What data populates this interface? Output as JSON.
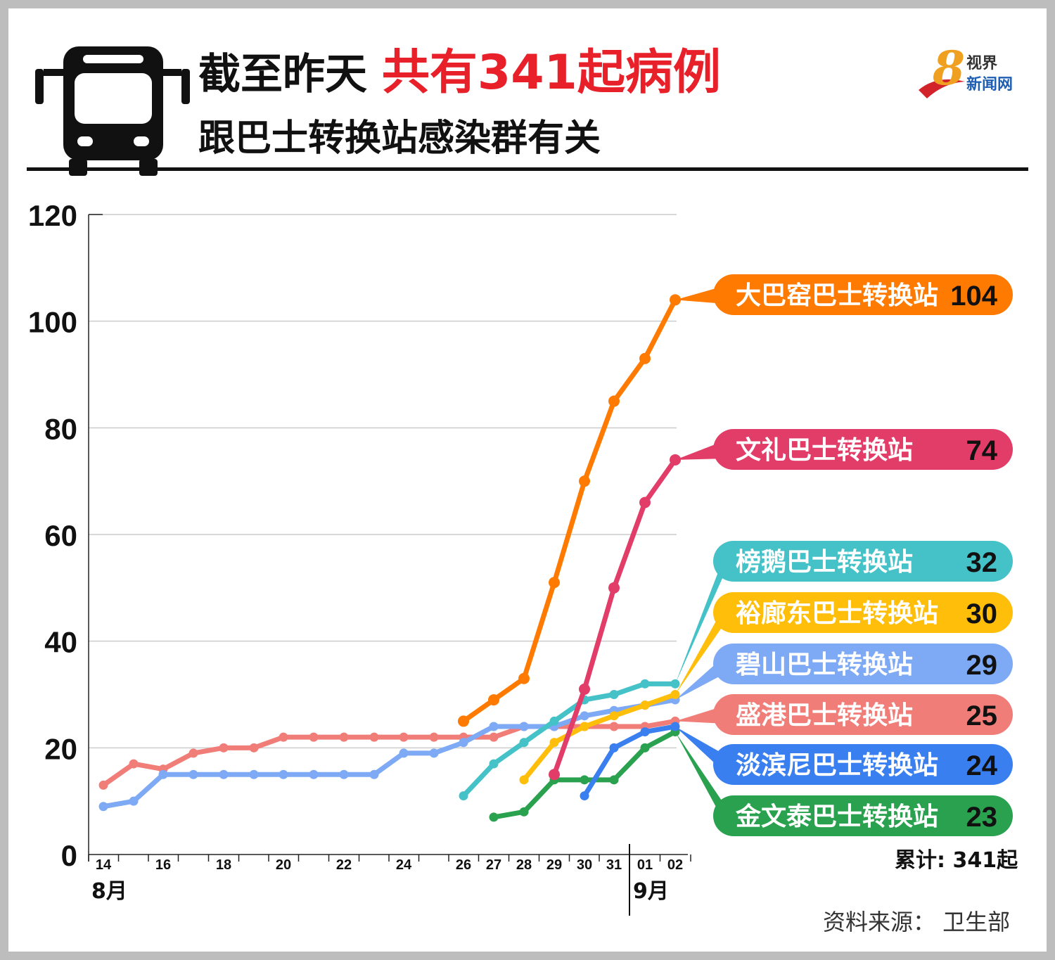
{
  "header": {
    "title_part1": "截至昨天",
    "title_highlight": "共有341起病例",
    "title_line2": "跟巴士转换站感染群有关",
    "highlight_color": "#e8202a",
    "icon": "bus-icon"
  },
  "logo": {
    "mark": "8",
    "line1": "视界",
    "line2": "新闻网"
  },
  "chart_data": {
    "type": "line",
    "ylim": [
      0,
      120
    ],
    "y_ticks": [
      "0",
      "20",
      "40",
      "60",
      "80",
      "100",
      "120"
    ],
    "y_tick_values": [
      0,
      20,
      40,
      60,
      80,
      100,
      120
    ],
    "x": [
      "14",
      "15",
      "16",
      "17",
      "18",
      "19",
      "20",
      "21",
      "22",
      "23",
      "24",
      "25",
      "26",
      "27",
      "28",
      "29",
      "30",
      "31",
      "01",
      "02"
    ],
    "x_tick_labels": [
      "14",
      "",
      "16",
      "",
      "18",
      "",
      "20",
      "",
      "22",
      "",
      "24",
      "",
      "26",
      "27",
      "28",
      "29",
      "30",
      "31",
      "01",
      "02"
    ],
    "months": {
      "aug": "8月",
      "sep": "9月"
    },
    "grid": true,
    "legend": "right",
    "series": [
      {
        "name": "大巴窑巴士转换站",
        "label_value": "104",
        "color": "#ff7a00",
        "values": [
          null,
          null,
          null,
          null,
          null,
          null,
          null,
          null,
          null,
          null,
          null,
          null,
          25,
          29,
          33,
          51,
          70,
          85,
          93,
          104
        ]
      },
      {
        "name": "文礼巴士转换站",
        "label_value": "74",
        "color": "#e23d68",
        "values": [
          null,
          null,
          null,
          null,
          null,
          null,
          null,
          null,
          null,
          null,
          null,
          null,
          null,
          null,
          null,
          15,
          31,
          50,
          66,
          74
        ]
      },
      {
        "name": "榜鹅巴士转换站",
        "label_value": "32",
        "color": "#45c1c8",
        "values": [
          null,
          null,
          null,
          null,
          null,
          null,
          null,
          null,
          null,
          null,
          null,
          null,
          11,
          17,
          21,
          25,
          29,
          30,
          32,
          32
        ]
      },
      {
        "name": "裕廊东巴士转换站",
        "label_value": "30",
        "color": "#ffbe0a",
        "values": [
          null,
          null,
          null,
          null,
          null,
          null,
          null,
          null,
          null,
          null,
          null,
          null,
          null,
          null,
          14,
          21,
          24,
          26,
          28,
          30
        ]
      },
      {
        "name": "碧山巴士转换站",
        "label_value": "29",
        "color": "#7ea9f4",
        "values": [
          9,
          10,
          15,
          15,
          15,
          15,
          15,
          15,
          15,
          15,
          19,
          19,
          21,
          24,
          24,
          24,
          26,
          27,
          28,
          29
        ]
      },
      {
        "name": "盛港巴士转换站",
        "label_value": "25",
        "color": "#f07d78",
        "values": [
          13,
          17,
          16,
          19,
          20,
          20,
          22,
          22,
          22,
          22,
          22,
          22,
          22,
          22,
          24,
          24,
          24,
          24,
          24,
          25
        ]
      },
      {
        "name": "淡滨尼巴士转换站",
        "label_value": "24",
        "color": "#3a7ff0",
        "values": [
          null,
          null,
          null,
          null,
          null,
          null,
          null,
          null,
          null,
          null,
          null,
          null,
          null,
          null,
          null,
          null,
          11,
          20,
          23,
          24
        ]
      },
      {
        "name": "金文泰巴士转换站",
        "label_value": "23",
        "color": "#2aa14f",
        "values": [
          null,
          null,
          null,
          null,
          null,
          null,
          null,
          null,
          null,
          null,
          null,
          null,
          null,
          7,
          8,
          14,
          14,
          14,
          20,
          23
        ]
      }
    ]
  },
  "footer": {
    "total": "累计: 341起",
    "source": "资料来源：  卫生部"
  }
}
